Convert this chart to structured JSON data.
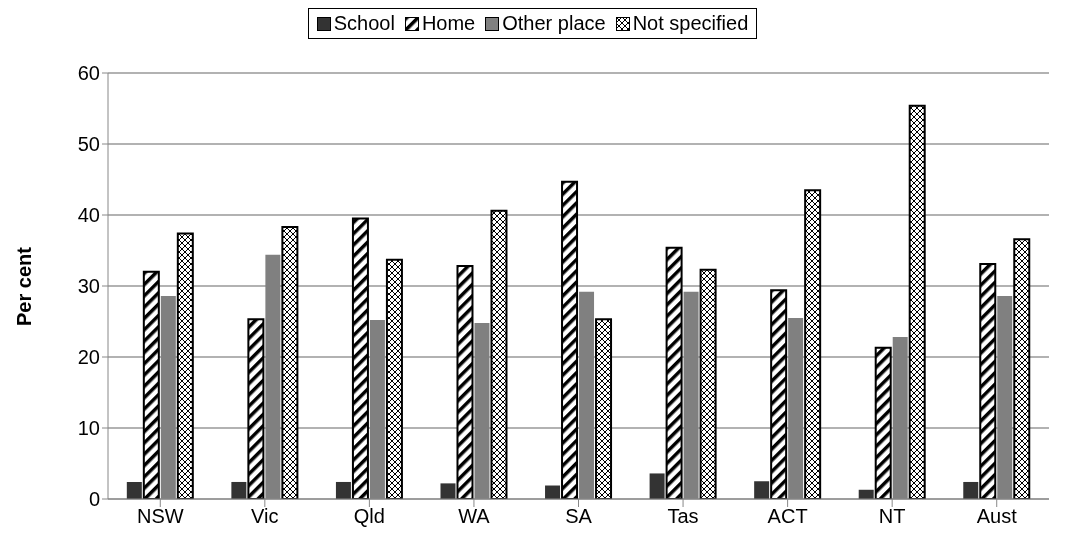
{
  "chart_data": {
    "type": "bar",
    "ylabel": "Per cent",
    "categories": [
      "NSW",
      "Vic",
      "Qld",
      "WA",
      "SA",
      "Tas",
      "ACT",
      "NT",
      "Aust"
    ],
    "series": [
      {
        "name": "School",
        "color": "#333333",
        "values": [
          2.4,
          2.4,
          2.4,
          2.2,
          1.9,
          3.6,
          2.5,
          1.3,
          2.4
        ]
      },
      {
        "name": "Home",
        "color": "#000000",
        "values": [
          32,
          25.3,
          39.5,
          32.8,
          44.7,
          35.4,
          29.4,
          21.3,
          33.1
        ]
      },
      {
        "name": "Other place",
        "color": "#808080",
        "values": [
          28.6,
          34.4,
          25.2,
          24.8,
          29.2,
          29.2,
          25.5,
          22.8,
          28.6
        ]
      },
      {
        "name": "Not specified",
        "color": "#000000",
        "values": [
          37.4,
          38.3,
          33.7,
          40.6,
          25.3,
          32.3,
          43.5,
          55.4,
          36.6
        ]
      }
    ],
    "ylim": [
      0,
      60
    ],
    "yticks": [
      0,
      10,
      20,
      30,
      40,
      50,
      60
    ],
    "grid": "y",
    "legend": "top"
  }
}
